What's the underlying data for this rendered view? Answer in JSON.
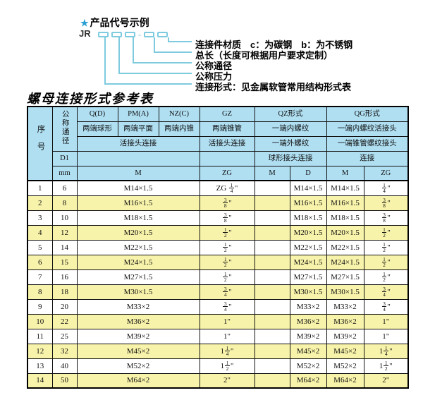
{
  "colors": {
    "header_blue": "#b0dff2",
    "row_yellow": "#f8f3aa",
    "line_blue": "#7ecbe0",
    "star_blue": "#2a9fd4",
    "border_black": "#000000"
  },
  "diagram": {
    "star_icon": "★",
    "heading": "产品代号示例",
    "code_prefix": "JR",
    "code_dash": "-",
    "labels": [
      "连接件材质　c：为碳钢　b：为不锈钢",
      "总长（长度可根据用户要求定制）",
      "公称通径",
      "公称压力",
      "连接形式：见金属软管常用结构形式表"
    ]
  },
  "table": {
    "title": "螺母连接形式参考表",
    "header": {
      "seq": "序号",
      "dn": "公称通径",
      "d1": "D1",
      "mm": "mm",
      "q": "Q(D)",
      "q_desc": "两端球形",
      "pm": "PM(A)",
      "pm_desc": "两端平面",
      "nz": "NZ(C)",
      "nz_desc": "两端内锥",
      "gz": "GZ",
      "gz_desc": "两端锥管",
      "gz_conn": "活接头连接",
      "union_conn": "活接头连接",
      "qz": "QZ形式",
      "qz_r2": "一端内螺纹",
      "qz_r3": "一端外螺纹",
      "qz_r4": "球形接头连接",
      "qg": "QG形式",
      "qg_r2": "一端内螺纹活接头",
      "qg_r3": "一端锥管螺纹接头",
      "qg_r4": "连接",
      "sub_m": "M",
      "sub_zg": "ZG",
      "sub_qz_m": "M",
      "sub_qz_d": "D",
      "sub_qg_m": "M",
      "sub_qg_zg": "ZG"
    },
    "rows": [
      {
        "no": "1",
        "dn": "6",
        "m": "M14×1.5",
        "gz": "ZG [1/4]\"",
        "qz_m": "",
        "qz_d": "M14×1.5",
        "qg_m": "M14×1.5",
        "qg_zg": "[1/4]\""
      },
      {
        "no": "2",
        "dn": "8",
        "m": "M16×1.5",
        "gz": "[3/8]\"",
        "qz_m": "",
        "qz_d": "M16×1.5",
        "qg_m": "M16×1.5",
        "qg_zg": "[3/8]\""
      },
      {
        "no": "3",
        "dn": "10",
        "m": "M18×1.5",
        "gz": "[3/8]\"",
        "qz_m": "",
        "qz_d": "M18×1.5",
        "qg_m": "M18×1.5",
        "qg_zg": "[3/8]\""
      },
      {
        "no": "4",
        "dn": "12",
        "m": "M20×1.5",
        "gz": "[1/2]\"",
        "qz_m": "",
        "qz_d": "M20×1.5",
        "qg_m": "M20×1.5",
        "qg_zg": "[1/2]\""
      },
      {
        "no": "5",
        "dn": "14",
        "m": "M22×1.5",
        "gz": "[1/2]\"",
        "qz_m": "",
        "qz_d": "M22×1.5",
        "qg_m": "M22×1.5",
        "qg_zg": "[1/2]\""
      },
      {
        "no": "6",
        "dn": "15",
        "m": "M24×1.5",
        "gz": "[1/2]\"",
        "qz_m": "",
        "qz_d": "M24×1.5",
        "qg_m": "M24×1.5",
        "qg_zg": "[1/2]\""
      },
      {
        "no": "7",
        "dn": "16",
        "m": "M27×1.5",
        "gz": "[1/2]\"",
        "qz_m": "",
        "qz_d": "M27×1.5",
        "qg_m": "M27×1.5",
        "qg_zg": "[1/2]\""
      },
      {
        "no": "8",
        "dn": "18",
        "m": "M30×1.5",
        "gz": "[3/4]\"",
        "qz_m": "",
        "qz_d": "M30×1.5",
        "qg_m": "M30×1.5",
        "qg_zg": "[3/4]\""
      },
      {
        "no": "9",
        "dn": "20",
        "m": "M33×2",
        "gz": "[3/4]\"",
        "qz_m": "",
        "qz_d": "M33×2",
        "qg_m": "M33×2",
        "qg_zg": "[3/4]\""
      },
      {
        "no": "10",
        "dn": "22",
        "m": "M36×2",
        "gz": "1\"",
        "qz_m": "",
        "qz_d": "M36×2",
        "qg_m": "M36×2",
        "qg_zg": "1\""
      },
      {
        "no": "11",
        "dn": "25",
        "m": "M39×2",
        "gz": "1\"",
        "qz_m": "",
        "qz_d": "M39×2",
        "qg_m": "M39×2",
        "qg_zg": "1\""
      },
      {
        "no": "12",
        "dn": "32",
        "m": "M45×2",
        "gz": "1[1/4]\"",
        "qz_m": "",
        "qz_d": "M45×2",
        "qg_m": "M45×2",
        "qg_zg": "1[1/4]\""
      },
      {
        "no": "13",
        "dn": "40",
        "m": "M52×2",
        "gz": "1[1/2]\"",
        "qz_m": "",
        "qz_d": "M52×2",
        "qg_m": "M52×2",
        "qg_zg": "1[1/2]\""
      },
      {
        "no": "14",
        "dn": "50",
        "m": "M64×2",
        "gz": "2\"",
        "qz_m": "",
        "qz_d": "M64×2",
        "qg_m": "M64×2",
        "qg_zg": "2\""
      }
    ]
  }
}
